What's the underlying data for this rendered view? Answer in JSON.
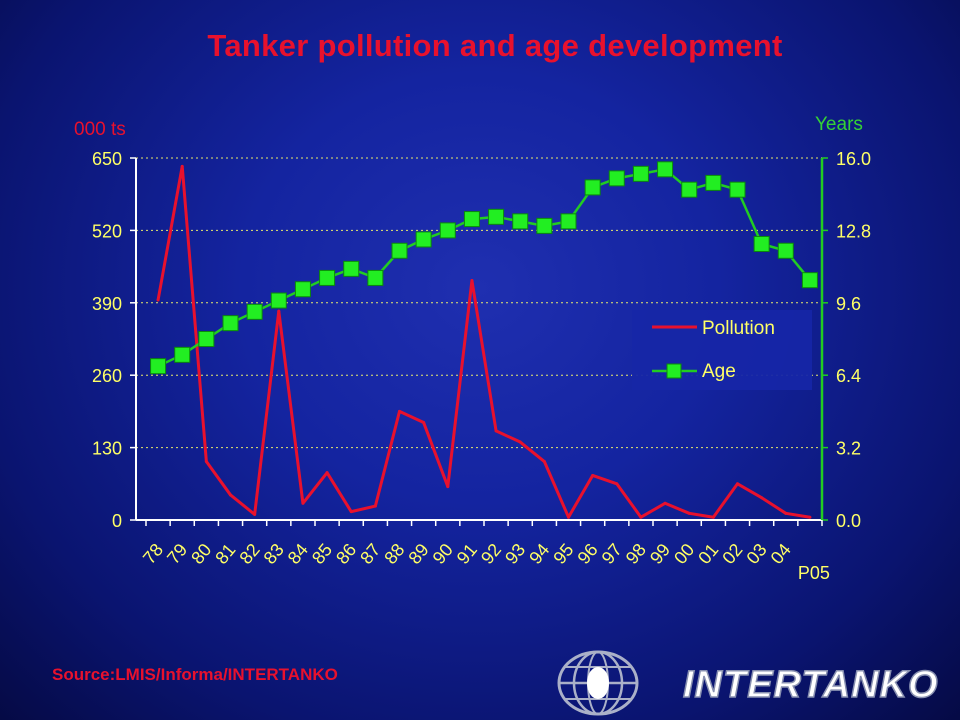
{
  "title": "Tanker pollution and age development",
  "source": "Source:LMIS/Informa/INTERTANKO",
  "logo_text": "INTERTANKO",
  "colors": {
    "pollution": "#e8112d",
    "age": "#22cc22",
    "age_marker": "#22ee22",
    "tick_left": "#ffff66",
    "tick_right": "#ffff66",
    "grid": "#ffff66"
  },
  "chart_data": {
    "type": "line",
    "title": "Tanker pollution and age development",
    "categories": [
      "78",
      "79",
      "80",
      "81",
      "82",
      "83",
      "84",
      "85",
      "86",
      "87",
      "88",
      "89",
      "90",
      "91",
      "92",
      "93",
      "94",
      "95",
      "96",
      "97",
      "98",
      "99",
      "00",
      "01",
      "02",
      "03",
      "04",
      "P05"
    ],
    "y_left": {
      "label": "000 ts",
      "range": [
        0,
        650
      ],
      "ticks": [
        "0",
        "130",
        "260",
        "390",
        "520",
        "650"
      ]
    },
    "y_right": {
      "label": "Years",
      "range": [
        0,
        16
      ],
      "ticks": [
        "0.0",
        "3.2",
        "6.4",
        "9.6",
        "12.8",
        "16.0"
      ]
    },
    "series": [
      {
        "name": "Pollution",
        "axis": "left",
        "values": [
          395,
          635,
          105,
          45,
          10,
          375,
          30,
          85,
          15,
          25,
          195,
          175,
          60,
          430,
          160,
          140,
          105,
          5,
          80,
          65,
          5,
          30,
          12,
          5,
          65,
          40,
          12,
          5
        ]
      },
      {
        "name": "Age",
        "axis": "right",
        "values": [
          6.8,
          7.3,
          8.0,
          8.7,
          9.2,
          9.7,
          10.2,
          10.7,
          11.1,
          10.7,
          11.9,
          12.4,
          12.8,
          13.3,
          13.4,
          13.2,
          13.0,
          13.2,
          14.7,
          15.1,
          15.3,
          15.5,
          14.6,
          14.9,
          14.6,
          12.2,
          11.9,
          10.6
        ]
      }
    ],
    "legend": {
      "position": "right-middle",
      "entries": [
        "Pollution",
        "Age"
      ]
    },
    "grid": "horizontal dashed"
  }
}
